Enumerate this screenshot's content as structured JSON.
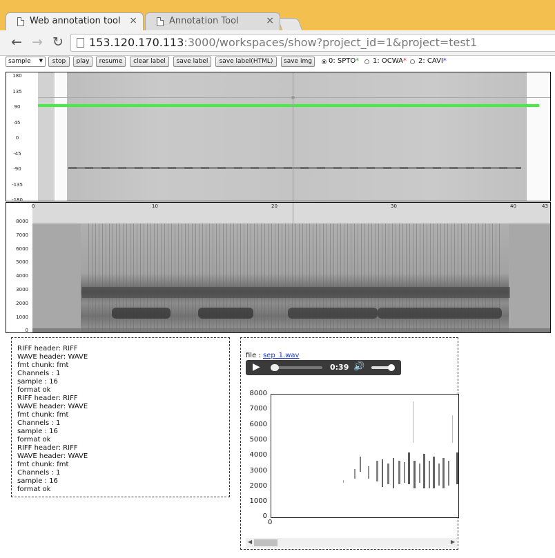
{
  "browser": {
    "tabs": [
      {
        "title": "Web annotation tool",
        "close": "×",
        "active": true
      },
      {
        "title": "Annotation Tool",
        "close": "×",
        "active": false
      }
    ],
    "url_host": "153.120.170.113",
    "url_rest": ":3000/workspaces/show?project_id=1&project=test1",
    "back_glyph": "←",
    "forward_glyph": "→",
    "reload_glyph": "↻"
  },
  "toolbar": {
    "select_value": "sample",
    "select_arrow": "▼",
    "buttons": [
      "stop",
      "play",
      "resume",
      "clear label",
      "save label",
      "save label(HTML)",
      "save img"
    ],
    "radios": [
      {
        "label": "0: SPTO",
        "star": "*",
        "star_color": "#22bb22",
        "selected": true
      },
      {
        "label": "1: OCWA",
        "star": "*",
        "star_color": "#dd2222",
        "selected": false
      },
      {
        "label": "2: CAVI",
        "star": "*",
        "star_color": "#2222dd",
        "selected": false
      }
    ]
  },
  "top_panel": {
    "y_ticks": [
      "180",
      "135",
      "90",
      "45",
      "0",
      "-45",
      "-90",
      "-135",
      "-180"
    ],
    "x_ticks": [
      "0",
      "10",
      "20",
      "30",
      "40",
      "43"
    ],
    "label_color": "#44ee44"
  },
  "spectrogram_panel": {
    "y_ticks": [
      "8000",
      "7000",
      "6000",
      "5000",
      "4000",
      "3000",
      "2000",
      "1000",
      "0"
    ]
  },
  "info_lines": [
    "RIFF header: RIFF",
    "WAVE header: WAVE",
    "fmt chunk: fmt",
    "Channels : 1",
    "sample : 16",
    "format ok",
    "RIFF header: RIFF",
    "WAVE header: WAVE",
    "fmt chunk: fmt",
    "Channels : 1",
    "sample : 16",
    "format ok",
    "RIFF header: RIFF",
    "WAVE header: WAVE",
    "fmt chunk: fmt",
    "Channels : 1",
    "sample : 16",
    "format ok"
  ],
  "file_panel": {
    "file_prefix": "file : ",
    "file_name": "sep_1.wav",
    "time": "0:39",
    "play_glyph": "▶",
    "volume_glyph": "🔊",
    "spec_y_ticks": [
      "8000",
      "7000",
      "6000",
      "5000",
      "4000",
      "3000",
      "2000",
      "1000",
      "0"
    ],
    "spec_x_tick": "0",
    "scroll_left": "◀",
    "scroll_right": "▶"
  }
}
